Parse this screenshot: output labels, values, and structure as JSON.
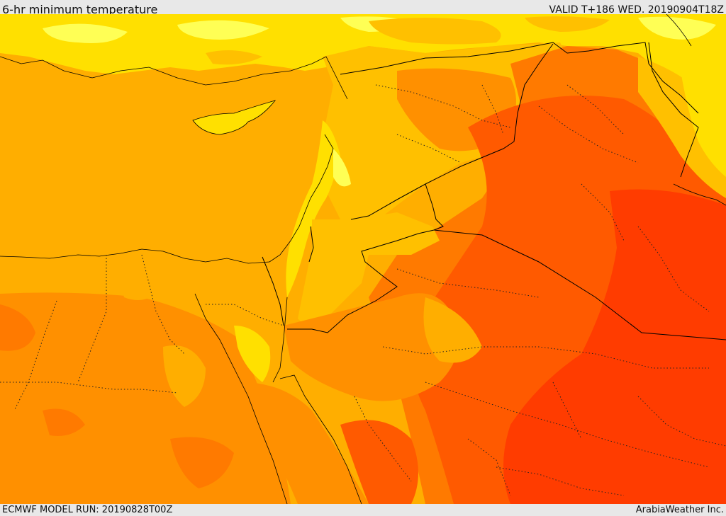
{
  "header": {
    "title": "6-hr minimum temperature",
    "valid": "VALID T+186 WED. 20190904T18Z"
  },
  "footer": {
    "model_run": "ECMWF MODEL RUN: 20190828T00Z",
    "credit": "ArabiaWeather Inc."
  },
  "palette": {
    "sea": "#ffae00",
    "pale_yellow": "#ffff55",
    "yellow": "#ffe000",
    "light_orange": "#ffc000",
    "mid_orange": "#ff9000",
    "orange": "#ff7a00",
    "dark_orange": "#ff5a00",
    "red_orange": "#ff3c00",
    "border": "#000000"
  }
}
